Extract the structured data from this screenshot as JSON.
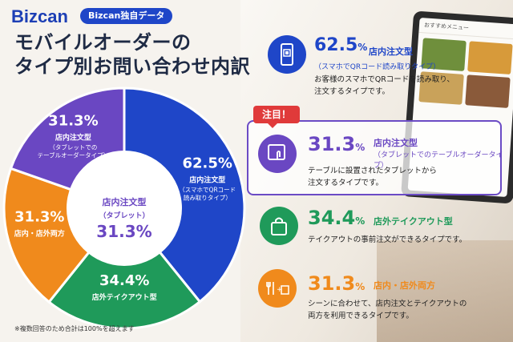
{
  "brand": "Bizcan",
  "brand_tag": "Bizcan独自データ",
  "headline_line1": "モバイルオーダーの",
  "headline_line2": "タイプ別お問い合わせ内訳",
  "footnote": "※複数回答のため合計は100%を超えます",
  "colors": {
    "blue": "#1f46c8",
    "purple": "#6a47c2",
    "green": "#1f9a5a",
    "orange": "#f08a1c"
  },
  "tablet_screen_title": "おすすめメニュー",
  "chart_data": {
    "type": "pie",
    "unit": "%",
    "slices": [
      {
        "key": "qr",
        "value": 62.5,
        "label": "店内注文型",
        "sublabel_1": "（スマホでQRコード",
        "sublabel_2": "読み取りタイプ）",
        "color": "#1f46c8"
      },
      {
        "key": "takeout",
        "value": 34.4,
        "label": "店外テイクアウト型",
        "color": "#1f9a5a"
      },
      {
        "key": "both",
        "value": 31.3,
        "label": "店内・店外両方",
        "color": "#f08a1c"
      },
      {
        "key": "tablet",
        "value": 31.3,
        "label": "店内注文型",
        "sublabel_1": "（タブレットでの",
        "sublabel_2": "テーブルオーダータイプ）",
        "color": "#6a47c2"
      }
    ],
    "center": {
      "label": "店内注文型",
      "sublabel": "（タブレット）",
      "value": "31.3"
    }
  },
  "cards": [
    {
      "pct": "62.5",
      "unit": "%",
      "category": "店内注文型",
      "sub": "（スマホでQRコード読み取りタイプ）",
      "desc_1": "お客様のスマホでQRコードを読み取り、",
      "desc_2": "注文するタイプです。",
      "color": "#1f46c8",
      "icon": "qr-phone-icon"
    },
    {
      "pct": "31.3",
      "unit": "%",
      "category": "店内注文型",
      "sub": "（タブレットでのテーブルオーダータイプ）",
      "desc_1": "テーブルに設置されたタブレットから",
      "desc_2": "注文するタイプです。",
      "color": "#6a47c2",
      "icon": "tablet-touch-icon",
      "badge": "注目！"
    },
    {
      "pct": "34.4",
      "unit": "%",
      "category": "店外テイクアウト型",
      "desc_1": "テイクアウトの事前注文ができるタイプです。",
      "color": "#1f9a5a",
      "icon": "shopping-bag-icon"
    },
    {
      "pct": "31.3",
      "unit": "%",
      "category": "店内・店外両方",
      "desc_1": "シーンに合わせて、店内注文とテイクアウトの",
      "desc_2": "両方を利用できるタイプです。",
      "color": "#f08a1c",
      "icon": "cutlery-plus-bag-icon"
    }
  ]
}
